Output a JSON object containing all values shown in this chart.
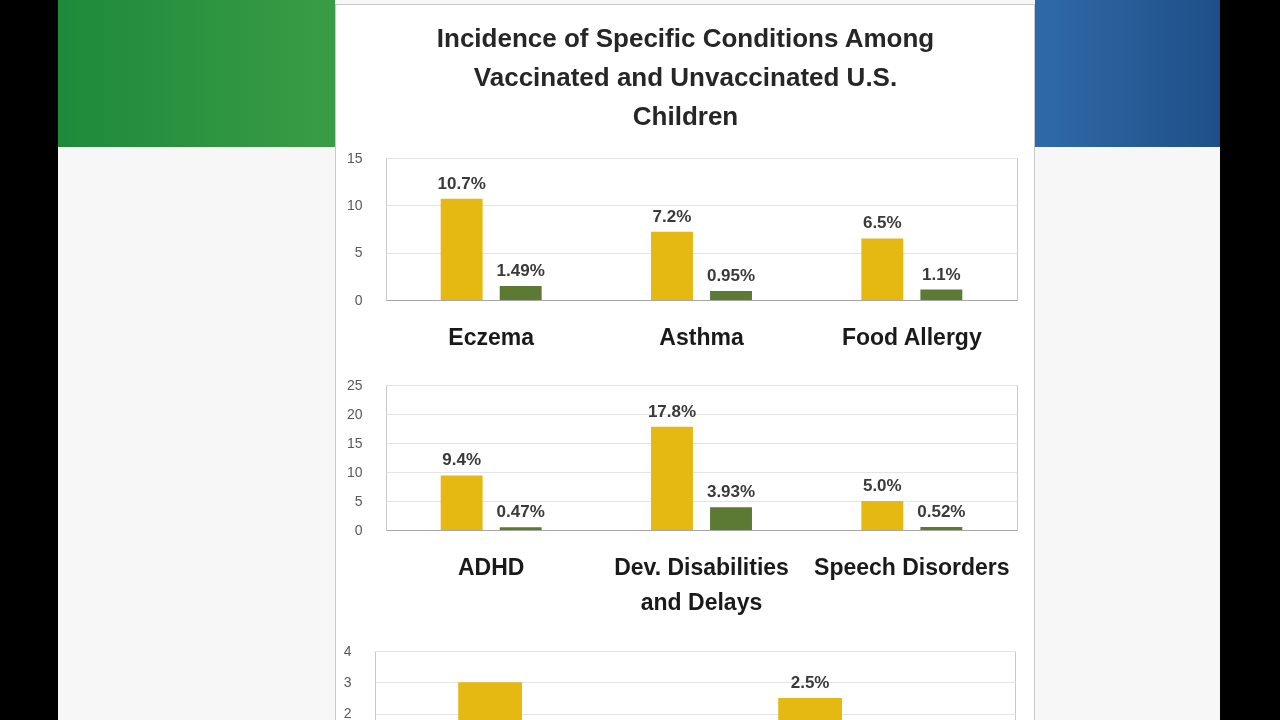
{
  "chart_data": [
    {
      "type": "bar",
      "title": "Incidence of Specific Conditions Among Vaccinated and Unvaccinated U.S. Children",
      "categories": [
        "Eczema",
        "Asthma",
        "Food Allergy"
      ],
      "series": [
        {
          "color": "#e6b812",
          "values": [
            10.7,
            7.2,
            6.5
          ],
          "value_labels": [
            "10.7%",
            "7.2%",
            "6.5%"
          ]
        },
        {
          "color": "#5c7a33",
          "values": [
            1.49,
            0.95,
            1.1
          ],
          "value_labels": [
            "1.49%",
            "0.95%",
            "1.1%"
          ]
        }
      ],
      "ylim": [
        0,
        15
      ],
      "yticks": [
        0,
        5,
        10,
        15
      ],
      "grid": "y"
    },
    {
      "type": "bar",
      "categories": [
        "ADHD",
        "Dev. Disabilities and Delays",
        "Speech Disorders"
      ],
      "series": [
        {
          "color": "#e6b812",
          "values": [
            9.4,
            17.8,
            5.0
          ],
          "value_labels": [
            "9.4%",
            "17.8%",
            "5.0%"
          ]
        },
        {
          "color": "#5c7a33",
          "values": [
            0.47,
            3.93,
            0.52
          ],
          "value_labels": [
            "0.47%",
            "3.93%",
            "0.52%"
          ]
        }
      ],
      "ylim": [
        0,
        25
      ],
      "yticks": [
        0,
        5,
        10,
        15,
        20,
        25
      ],
      "grid": "y"
    },
    {
      "type": "bar",
      "categories": [
        null,
        null
      ],
      "series": [
        {
          "color": "#e6b812",
          "values": [
            3.0,
            2.5
          ],
          "value_labels": [
            null,
            "2.5%"
          ]
        },
        {
          "color": "#5c7a33",
          "values": [
            null,
            null
          ]
        }
      ],
      "ylim": [
        1.8,
        4
      ],
      "yticks": [
        2,
        3,
        4
      ],
      "grid": "y"
    }
  ]
}
